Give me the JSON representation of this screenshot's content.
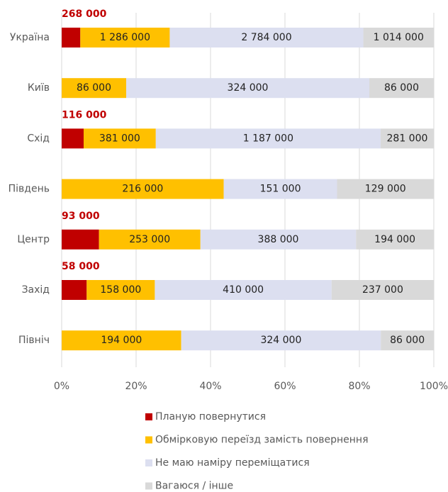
{
  "chart_data": {
    "type": "stacked-bar-horizontal-percent",
    "categories": [
      "Україна",
      "Київ",
      "Схід",
      "Південь",
      "Центр",
      "Захід",
      "Північ"
    ],
    "series": [
      {
        "name": "Планую повернутися",
        "color": "#c00000",
        "values": [
          268000,
          null,
          116000,
          null,
          93000,
          58000,
          null
        ],
        "value_labels": [
          "268 000",
          null,
          "116 000",
          null,
          "93 000",
          "58 000",
          null
        ]
      },
      {
        "name": "Обмірковую переїзд замість повернення",
        "color": "#ffc000",
        "values": [
          1286000,
          86000,
          381000,
          216000,
          253000,
          158000,
          194000
        ],
        "value_labels": [
          "1 286 000",
          "86 000",
          "381 000",
          "216 000",
          "253 000",
          "158 000",
          "194 000"
        ]
      },
      {
        "name": "Не маю наміру переміщатися",
        "color": "#dcdff0",
        "values": [
          2784000,
          324000,
          1187000,
          151000,
          388000,
          410000,
          324000
        ],
        "value_labels": [
          "2 784 000",
          "324 000",
          "1 187 000",
          "151 000",
          "388 000",
          "410 000",
          "324 000"
        ]
      },
      {
        "name": "Вагаюся / інше",
        "color": "#d9d9d9",
        "values": [
          1014000,
          86000,
          281000,
          129000,
          194000,
          237000,
          86000
        ],
        "value_labels": [
          "1 014 000",
          "86 000",
          "281 000",
          "129 000",
          "194 000",
          "237 000",
          "86 000"
        ]
      }
    ],
    "xlim": [
      0,
      100
    ],
    "xticks": [
      {
        "value": 0,
        "label": "0%"
      },
      {
        "value": 20,
        "label": "20%"
      },
      {
        "value": 40,
        "label": "40%"
      },
      {
        "value": 60,
        "label": "60%"
      },
      {
        "value": 80,
        "label": "80%"
      },
      {
        "value": 100,
        "label": "100%"
      }
    ],
    "grid": true
  }
}
